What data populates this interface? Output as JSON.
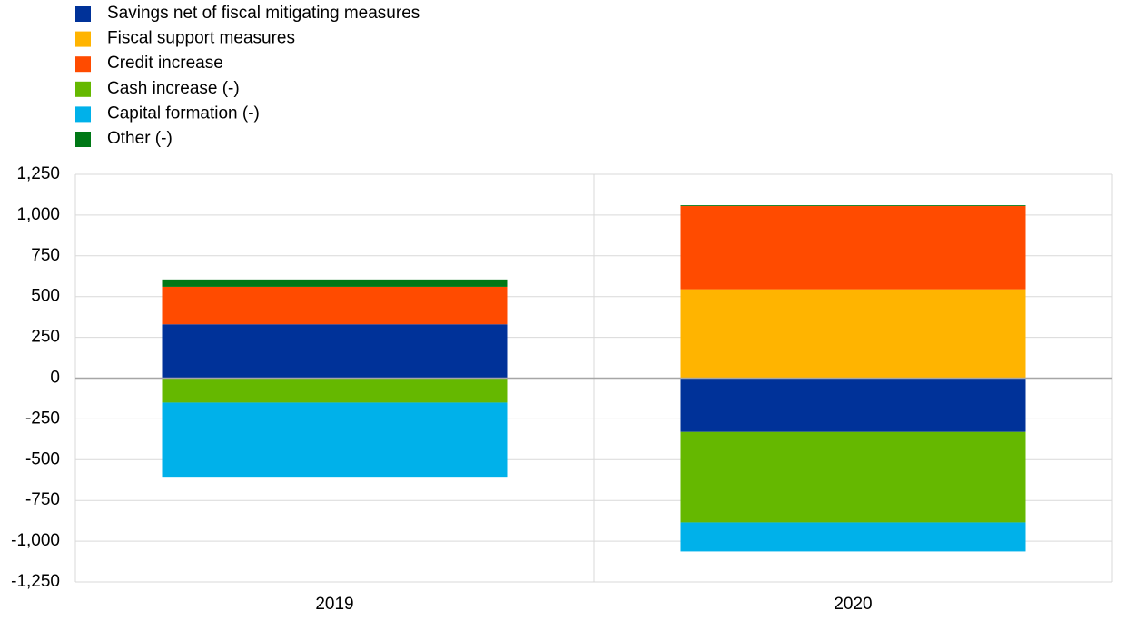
{
  "chart_data": {
    "type": "stacked_bar",
    "categories": [
      "2019",
      "2020"
    ],
    "series": [
      {
        "name": "Savings net of fiscal mitigating measures",
        "color": "#003299",
        "values": [
          330,
          -330
        ]
      },
      {
        "name": "Fiscal support measures",
        "color": "#ffb400",
        "values": [
          0,
          545
        ]
      },
      {
        "name": "Credit increase",
        "color": "#ff4b00",
        "values": [
          230,
          510
        ]
      },
      {
        "name": "Cash increase (-)",
        "color": "#65b800",
        "values": [
          -150,
          -555
        ]
      },
      {
        "name": "Capital formation (-)",
        "color": "#00b1ea",
        "values": [
          -455,
          -178
        ]
      },
      {
        "name": "Other (-)",
        "color": "#007816",
        "values": [
          45,
          5
        ]
      }
    ],
    "ylim": [
      -1250,
      1250
    ],
    "yticks": [
      {
        "value": -1250,
        "label": "-1,250"
      },
      {
        "value": -1000,
        "label": "-1,000"
      },
      -750,
      -500,
      -250,
      0,
      250,
      500,
      750,
      {
        "value": 1000,
        "label": "1,000"
      },
      {
        "value": 1250,
        "label": "1,250"
      }
    ],
    "grid": true
  }
}
